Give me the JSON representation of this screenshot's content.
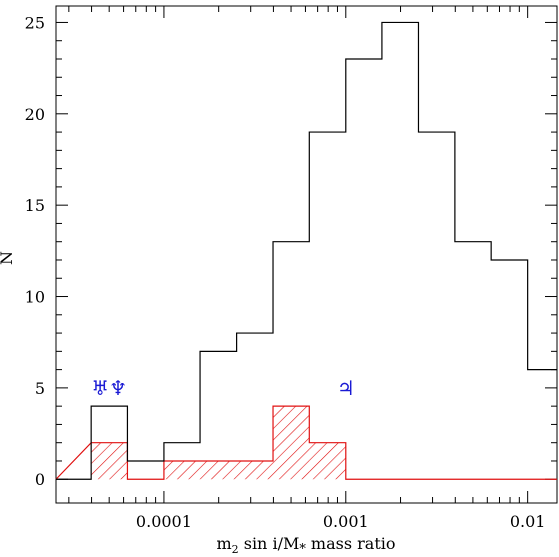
{
  "chart_data": {
    "type": "histogram",
    "xlabel_parts": {
      "m": "m",
      "sub2": "2",
      "mid": " sin i/M",
      "sub_star": "*",
      "tail": " mass ratio"
    },
    "ylabel": "N",
    "xscale": "log",
    "xlim": [
      2.55e-05,
      0.0145
    ],
    "ylim": [
      -1.3,
      25.9
    ],
    "x_ticks": [
      {
        "value": 0.0001,
        "label": "0.0001"
      },
      {
        "value": 0.001,
        "label": "0.001"
      },
      {
        "value": 0.01,
        "label": "0.01"
      }
    ],
    "y_ticks": [
      {
        "value": 0,
        "label": "0"
      },
      {
        "value": 5,
        "label": "5"
      },
      {
        "value": 10,
        "label": "10"
      },
      {
        "value": 15,
        "label": "15"
      },
      {
        "value": 20,
        "label": "20"
      },
      {
        "value": 25,
        "label": "25"
      }
    ],
    "bin_edges": [
      3.98e-05,
      6.3e-05,
      0.0001,
      0.000158,
      0.000251,
      0.000398,
      0.00063,
      0.001,
      0.00158,
      0.00251,
      0.00398,
      0.0063,
      0.01,
      0.0145
    ],
    "series": [
      {
        "counts": [
          4,
          1,
          2,
          7,
          8,
          13,
          19,
          23,
          25,
          19,
          13,
          12,
          6
        ],
        "color": "#000000",
        "style": "step"
      },
      {
        "counts": [
          2,
          0,
          1,
          1,
          1,
          4,
          2,
          0,
          0,
          0,
          0,
          0,
          0
        ],
        "color": "#e01010",
        "style": "hatched"
      }
    ],
    "annotations": [
      {
        "text": "♅♆",
        "x": 5e-05,
        "y": 5
      },
      {
        "text": "♃",
        "x": 0.001,
        "y": 5
      }
    ]
  }
}
